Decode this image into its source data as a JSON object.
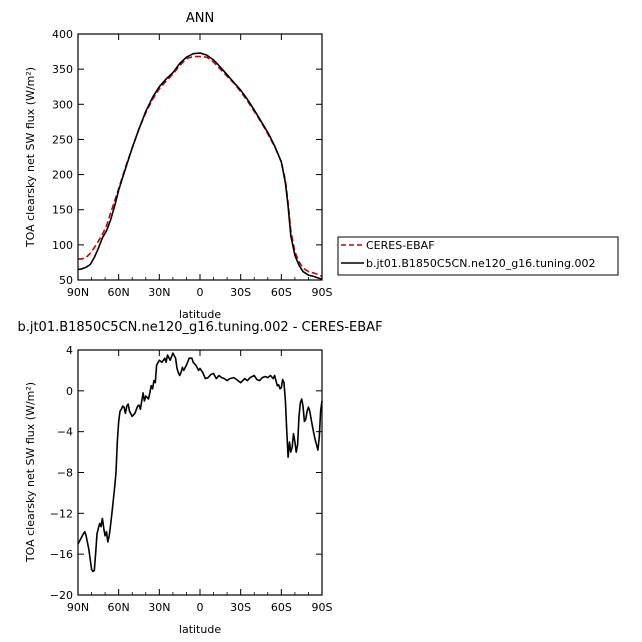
{
  "chart_data": [
    {
      "type": "line",
      "title": "ANN",
      "xlabel": "latitude",
      "ylabel": "TOA clearsky net SW flux (W/m²)",
      "xlim": [
        90,
        -90
      ],
      "ylim": [
        50,
        400
      ],
      "x_tick_values": [
        90,
        60,
        30,
        0,
        -30,
        -60,
        -90
      ],
      "x_tick_labels": [
        "90N",
        "60N",
        "30N",
        "0",
        "30S",
        "60S",
        "90S"
      ],
      "y_tick_values": [
        50,
        100,
        150,
        200,
        250,
        300,
        350,
        400
      ],
      "y_tick_labels": [
        "50",
        "100",
        "150",
        "200",
        "250",
        "300",
        "350",
        "400"
      ],
      "legend_position": "right",
      "series": [
        {
          "name": "CERES-EBAF",
          "color": "#cc0000",
          "dash": "dashed",
          "x": [
            90,
            87,
            84,
            81,
            78,
            75,
            72,
            69,
            66,
            63,
            60,
            55,
            50,
            45,
            40,
            35,
            30,
            25,
            20,
            15,
            10,
            5,
            0,
            -5,
            -10,
            -15,
            -20,
            -25,
            -30,
            -35,
            -40,
            -45,
            -50,
            -55,
            -60,
            -63,
            -65,
            -67,
            -70,
            -73,
            -76,
            -80,
            -84,
            -87,
            -90
          ],
          "y": [
            80,
            80,
            82,
            88,
            96,
            105,
            115,
            127,
            145,
            162,
            180,
            210,
            238,
            265,
            288,
            307,
            322,
            333,
            343,
            355,
            365,
            368,
            368,
            367,
            360,
            350,
            340,
            330,
            318,
            305,
            290,
            275,
            258,
            240,
            218,
            192,
            160,
            120,
            90,
            76,
            67,
            62,
            60,
            58,
            55
          ]
        },
        {
          "name": "b.jt01.B1850C5CN.ne120_g16.tuning.002",
          "color": "#000000",
          "dash": "solid",
          "x": [
            90,
            87,
            84,
            81,
            78,
            75,
            72,
            69,
            66,
            63,
            60,
            55,
            50,
            45,
            40,
            35,
            30,
            25,
            20,
            15,
            10,
            5,
            0,
            -5,
            -10,
            -15,
            -20,
            -25,
            -30,
            -35,
            -40,
            -45,
            -50,
            -55,
            -60,
            -63,
            -65,
            -67,
            -70,
            -73,
            -76,
            -80,
            -84,
            -87,
            -90
          ],
          "y": [
            65,
            66,
            68,
            72,
            82,
            95,
            110,
            120,
            135,
            155,
            178,
            208,
            238,
            265,
            290,
            310,
            325,
            336,
            345,
            358,
            367,
            372,
            373,
            370,
            363,
            353,
            342,
            331,
            320,
            307,
            292,
            276,
            260,
            241,
            218,
            188,
            155,
            113,
            85,
            71,
            62,
            57,
            55,
            53,
            51
          ]
        }
      ]
    },
    {
      "type": "line",
      "title": "b.jt01.B1850C5CN.ne120_g16.tuning.002 - CERES-EBAF",
      "xlabel": "latitude",
      "ylabel": "TOA clearsky net SW flux (W/m²)",
      "xlim": [
        90,
        -90
      ],
      "ylim": [
        -20,
        4
      ],
      "x_tick_values": [
        90,
        60,
        30,
        0,
        -30,
        -60,
        -90
      ],
      "x_tick_labels": [
        "90N",
        "60N",
        "30N",
        "0",
        "30S",
        "60S",
        "90S"
      ],
      "y_tick_values": [
        4,
        0,
        -4,
        -8,
        -12,
        -16,
        -20
      ],
      "y_tick_labels": [
        "4",
        "0",
        "−4",
        "−8",
        "−12",
        "−16",
        "−20"
      ],
      "series": [
        {
          "color": "#000000",
          "x": [
            90,
            88,
            86,
            85,
            84,
            82,
            81,
            80,
            79,
            78,
            77,
            76,
            75,
            74,
            73,
            72,
            71,
            70,
            69,
            68,
            67,
            66,
            65,
            64,
            63,
            62,
            61,
            60,
            59,
            58,
            57,
            56,
            55,
            54,
            53,
            52,
            50,
            48,
            46,
            45,
            44,
            42,
            41,
            40,
            38,
            37,
            36,
            35,
            34,
            33,
            32,
            30,
            28,
            26,
            25,
            24,
            22,
            20,
            18,
            17,
            16,
            15,
            14,
            13,
            12,
            10,
            8,
            6,
            5,
            3,
            1,
            0,
            -2,
            -4,
            -6,
            -8,
            -10,
            -12,
            -14,
            -16,
            -18,
            -20,
            -22,
            -25,
            -28,
            -30,
            -33,
            -35,
            -37,
            -40,
            -42,
            -44,
            -46,
            -48,
            -50,
            -52,
            -54,
            -55,
            -56,
            -57,
            -58,
            -59,
            -60,
            -61,
            -62,
            -63,
            -64,
            -65,
            -66,
            -67,
            -68,
            -69,
            -70,
            -71,
            -72,
            -73,
            -74,
            -75,
            -76,
            -77,
            -78,
            -79,
            -80,
            -81,
            -82,
            -83,
            -84,
            -85,
            -86,
            -87,
            -88,
            -89,
            -90
          ],
          "y": [
            -15,
            -14.5,
            -14,
            -13.8,
            -14.2,
            -15.5,
            -16.5,
            -17.5,
            -17.7,
            -17.6,
            -16,
            -14,
            -13.5,
            -13,
            -13.3,
            -12.5,
            -13.5,
            -14.2,
            -13.8,
            -14.8,
            -14.2,
            -13.2,
            -12,
            -10.8,
            -9.5,
            -8,
            -5,
            -3,
            -2,
            -1.8,
            -1.5,
            -1.6,
            -2.2,
            -1.5,
            -1.3,
            -2,
            -2.5,
            -2.2,
            -1.5,
            -1.4,
            -1.8,
            -0.2,
            -1,
            -0.5,
            -0.8,
            -0.2,
            0.5,
            0.2,
            1,
            0.8,
            2.5,
            3,
            2.8,
            3.2,
            2.8,
            3.5,
            3,
            3.7,
            3.2,
            2.2,
            1.8,
            1.5,
            1.8,
            2.3,
            2,
            2.5,
            3.2,
            3.2,
            2.8,
            2.5,
            2,
            2.2,
            1.8,
            1.2,
            1.3,
            1.6,
            1.7,
            1.2,
            1.5,
            1.3,
            1.2,
            1.0,
            1.2,
            1.3,
            1.0,
            0.8,
            1.2,
            1.0,
            1.3,
            1.5,
            1.1,
            1.0,
            1.3,
            1.4,
            1.3,
            1.5,
            1.2,
            1.5,
            1.0,
            0.5,
            0.6,
            0.2,
            0.3,
            1.1,
            0.8,
            -1.0,
            -4.0,
            -6.5,
            -5.0,
            -6.0,
            -5.5,
            -4.2,
            -5.0,
            -6.0,
            -5.3,
            -2.5,
            -1.2,
            -0.8,
            -1.5,
            -3.0,
            -2.8,
            -2.0,
            -1.6,
            -2.0,
            -2.8,
            -3.5,
            -4.2,
            -4.8,
            -5.3,
            -5.8,
            -4.5,
            -2.0,
            -1.0
          ]
        }
      ]
    }
  ]
}
